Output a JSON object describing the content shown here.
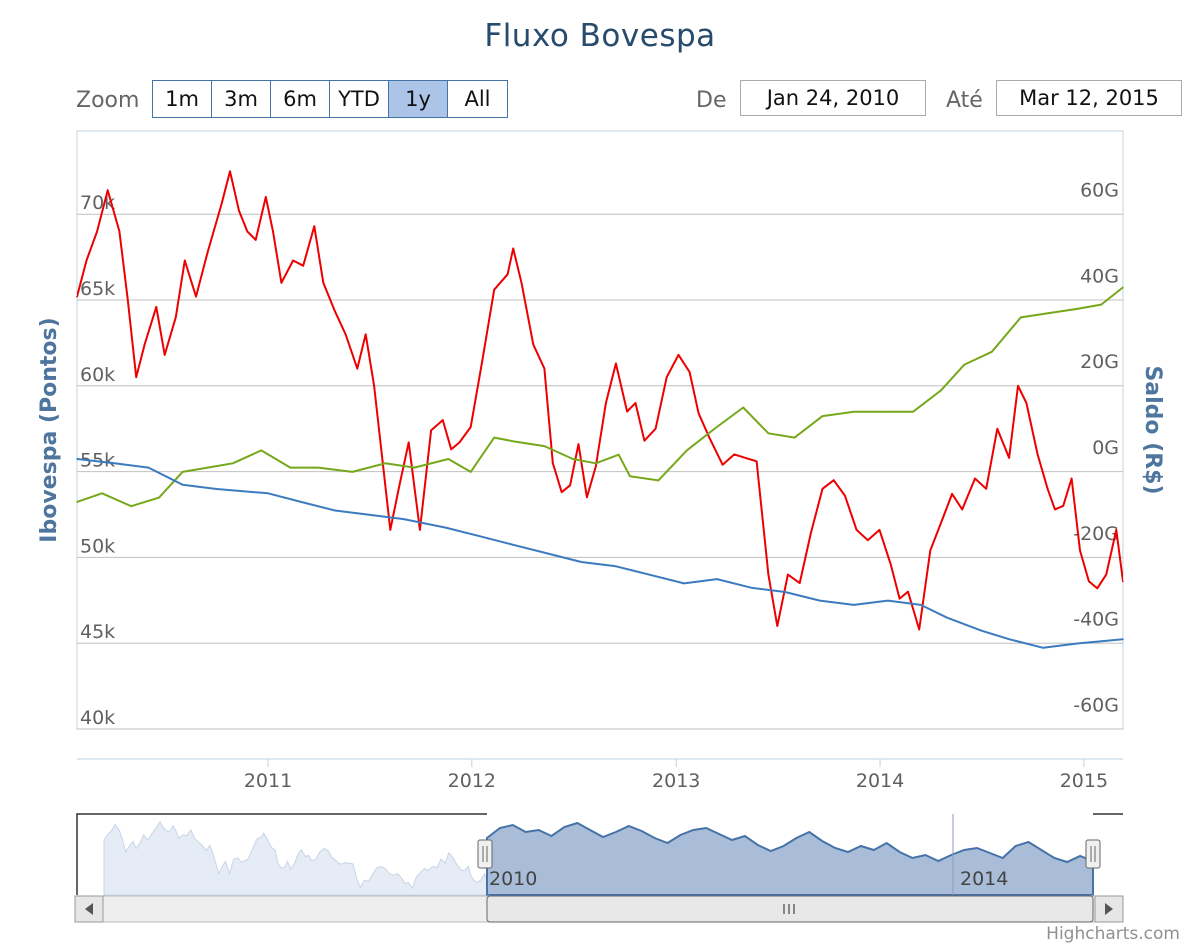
{
  "title": "Fluxo Bovespa",
  "range_selector": {
    "zoom_label": "Zoom",
    "buttons": [
      "1m",
      "3m",
      "6m",
      "YTD",
      "1y",
      "All"
    ],
    "active": "1y",
    "from_label": "De",
    "from_value": "Jan 24, 2010",
    "to_label": "Até",
    "to_value": "Mar 12, 2015"
  },
  "credit": "Highcharts.com",
  "colors": {
    "ibovespa": "#ee0000",
    "saldo_green": "#76a81b",
    "saldo_blue": "#3d7bbf",
    "title": "#274b6d",
    "axis_title": "#4d759e",
    "gridline": "#c0c0c0",
    "navigator_fill": "#a9bcd8",
    "navigator_line": "#4572a7"
  },
  "chart_data": {
    "type": "line",
    "title": "Fluxo Bovespa",
    "x_range": [
      "2010-01-24",
      "2015-03-12"
    ],
    "x_ticks": [
      "2011",
      "2012",
      "2013",
      "2014",
      "2015"
    ],
    "y_left": {
      "label": "Ibovespa (Pontos)",
      "ticks": [
        "40k",
        "45k",
        "50k",
        "55k",
        "60k",
        "65k",
        "70k"
      ],
      "range": [
        40000,
        75000
      ]
    },
    "y_right": {
      "label": "Saldo (R$)",
      "ticks": [
        "-60G",
        "-40G",
        "-20G",
        "0G",
        "20G",
        "40G",
        "60G"
      ],
      "range": [
        -60,
        80
      ]
    },
    "grid": true,
    "series": [
      {
        "axis": "left",
        "color": "#ee0000",
        "points": [
          [
            "2010-01-24",
            65200
          ],
          [
            "2010-02-10",
            67300
          ],
          [
            "2010-03-01",
            69000
          ],
          [
            "2010-03-20",
            71400
          ],
          [
            "2010-04-10",
            69000
          ],
          [
            "2010-04-25",
            65000
          ],
          [
            "2010-05-10",
            60500
          ],
          [
            "2010-05-25",
            62400
          ],
          [
            "2010-06-15",
            64600
          ],
          [
            "2010-06-30",
            61800
          ],
          [
            "2010-07-20",
            64000
          ],
          [
            "2010-08-05",
            67300
          ],
          [
            "2010-08-25",
            65200
          ],
          [
            "2010-09-15",
            67800
          ],
          [
            "2010-10-10",
            70600
          ],
          [
            "2010-10-25",
            72500
          ],
          [
            "2010-11-10",
            70200
          ],
          [
            "2010-11-25",
            69000
          ],
          [
            "2010-12-10",
            68500
          ],
          [
            "2010-12-28",
            71000
          ],
          [
            "2011-01-10",
            69000
          ],
          [
            "2011-01-25",
            66000
          ],
          [
            "2011-02-15",
            67300
          ],
          [
            "2011-03-05",
            67000
          ],
          [
            "2011-03-25",
            69300
          ],
          [
            "2011-04-10",
            66000
          ],
          [
            "2011-04-30",
            64400
          ],
          [
            "2011-05-20",
            63000
          ],
          [
            "2011-06-10",
            61000
          ],
          [
            "2011-06-25",
            63000
          ],
          [
            "2011-07-10",
            60000
          ],
          [
            "2011-08-08",
            51600
          ],
          [
            "2011-08-25",
            54300
          ],
          [
            "2011-09-10",
            56700
          ],
          [
            "2011-09-30",
            51600
          ],
          [
            "2011-10-20",
            57400
          ],
          [
            "2011-11-10",
            58000
          ],
          [
            "2011-11-25",
            56300
          ],
          [
            "2011-12-10",
            56700
          ],
          [
            "2011-12-30",
            57600
          ],
          [
            "2012-01-20",
            61500
          ],
          [
            "2012-02-10",
            65600
          ],
          [
            "2012-03-05",
            66500
          ],
          [
            "2012-03-15",
            68000
          ],
          [
            "2012-03-30",
            66000
          ],
          [
            "2012-04-20",
            62400
          ],
          [
            "2012-05-10",
            61000
          ],
          [
            "2012-05-25",
            55500
          ],
          [
            "2012-06-10",
            53800
          ],
          [
            "2012-06-25",
            54200
          ],
          [
            "2012-07-10",
            56600
          ],
          [
            "2012-07-25",
            53500
          ],
          [
            "2012-08-10",
            55300
          ],
          [
            "2012-08-28",
            59000
          ],
          [
            "2012-09-15",
            61300
          ],
          [
            "2012-10-05",
            58500
          ],
          [
            "2012-10-20",
            59000
          ],
          [
            "2012-11-05",
            56800
          ],
          [
            "2012-11-25",
            57500
          ],
          [
            "2012-12-15",
            60500
          ],
          [
            "2013-01-05",
            61800
          ],
          [
            "2013-01-25",
            60800
          ],
          [
            "2013-02-10",
            58400
          ],
          [
            "2013-03-01",
            57000
          ],
          [
            "2013-03-25",
            55400
          ],
          [
            "2013-04-15",
            56000
          ],
          [
            "2013-05-05",
            55800
          ],
          [
            "2013-05-25",
            55600
          ],
          [
            "2013-06-15",
            49000
          ],
          [
            "2013-07-01",
            46000
          ],
          [
            "2013-07-20",
            49000
          ],
          [
            "2013-08-10",
            48500
          ],
          [
            "2013-08-30",
            51400
          ],
          [
            "2013-09-20",
            54000
          ],
          [
            "2013-10-10",
            54500
          ],
          [
            "2013-10-30",
            53600
          ],
          [
            "2013-11-20",
            51600
          ],
          [
            "2013-12-10",
            51000
          ],
          [
            "2013-12-31",
            51600
          ],
          [
            "2014-01-20",
            49600
          ],
          [
            "2014-02-05",
            47600
          ],
          [
            "2014-02-20",
            48000
          ],
          [
            "2014-03-12",
            45800
          ],
          [
            "2014-04-01",
            50400
          ],
          [
            "2014-04-20",
            52000
          ],
          [
            "2014-05-10",
            53700
          ],
          [
            "2014-05-28",
            52800
          ],
          [
            "2014-06-20",
            54600
          ],
          [
            "2014-07-10",
            54000
          ],
          [
            "2014-07-30",
            57500
          ],
          [
            "2014-08-20",
            55800
          ],
          [
            "2014-09-05",
            60000
          ],
          [
            "2014-09-20",
            59000
          ],
          [
            "2014-10-10",
            56000
          ],
          [
            "2014-10-28",
            54000
          ],
          [
            "2014-11-10",
            52800
          ],
          [
            "2014-11-25",
            53000
          ],
          [
            "2014-12-10",
            54600
          ],
          [
            "2014-12-25",
            50400
          ],
          [
            "2015-01-10",
            48600
          ],
          [
            "2015-01-25",
            48200
          ],
          [
            "2015-02-10",
            49000
          ],
          [
            "2015-02-28",
            51600
          ],
          [
            "2015-03-12",
            48600
          ]
        ]
      },
      {
        "axis": "right",
        "color": "#76a81b",
        "points": [
          [
            "2010-01-24",
            -10
          ],
          [
            "2010-03-10",
            -8
          ],
          [
            "2010-05-01",
            -11
          ],
          [
            "2010-06-20",
            -9
          ],
          [
            "2010-08-01",
            -3
          ],
          [
            "2010-09-15",
            -2
          ],
          [
            "2010-10-30",
            -1
          ],
          [
            "2010-12-20",
            2
          ],
          [
            "2011-02-10",
            -2
          ],
          [
            "2011-04-01",
            -2
          ],
          [
            "2011-06-01",
            -3
          ],
          [
            "2011-07-30",
            -1
          ],
          [
            "2011-09-20",
            -2
          ],
          [
            "2011-11-20",
            0
          ],
          [
            "2011-12-30",
            -3
          ],
          [
            "2012-02-10",
            5
          ],
          [
            "2012-03-20",
            4
          ],
          [
            "2012-05-10",
            3
          ],
          [
            "2012-06-30",
            0
          ],
          [
            "2012-08-10",
            -1
          ],
          [
            "2012-09-20",
            1
          ],
          [
            "2012-10-10",
            -4
          ],
          [
            "2012-11-30",
            -5
          ],
          [
            "2013-01-20",
            2
          ],
          [
            "2013-03-10",
            7
          ],
          [
            "2013-05-01",
            12
          ],
          [
            "2013-06-15",
            6
          ],
          [
            "2013-08-01",
            5
          ],
          [
            "2013-09-20",
            10
          ],
          [
            "2013-11-15",
            11
          ],
          [
            "2014-01-05",
            11
          ],
          [
            "2014-03-01",
            11
          ],
          [
            "2014-04-20",
            16
          ],
          [
            "2014-06-01",
            22
          ],
          [
            "2014-07-20",
            25
          ],
          [
            "2014-09-10",
            33
          ],
          [
            "2014-10-30",
            34
          ],
          [
            "2014-12-20",
            35
          ],
          [
            "2015-02-01",
            36
          ],
          [
            "2015-03-12",
            40
          ]
        ]
      },
      {
        "axis": "right",
        "color": "#3d7bbf",
        "points": [
          [
            "2010-01-24",
            0
          ],
          [
            "2010-04-01",
            -1
          ],
          [
            "2010-06-01",
            -2
          ],
          [
            "2010-08-01",
            -6
          ],
          [
            "2010-10-01",
            -7
          ],
          [
            "2011-01-01",
            -8
          ],
          [
            "2011-03-01",
            -10
          ],
          [
            "2011-05-01",
            -12
          ],
          [
            "2011-07-01",
            -13
          ],
          [
            "2011-09-01",
            -14
          ],
          [
            "2011-11-15",
            -16
          ],
          [
            "2012-01-15",
            -18
          ],
          [
            "2012-03-15",
            -20
          ],
          [
            "2012-05-15",
            -22
          ],
          [
            "2012-07-15",
            -24
          ],
          [
            "2012-09-15",
            -25
          ],
          [
            "2012-11-15",
            -27
          ],
          [
            "2013-01-15",
            -29
          ],
          [
            "2013-03-15",
            -28
          ],
          [
            "2013-05-15",
            -30
          ],
          [
            "2013-07-15",
            -31
          ],
          [
            "2013-09-15",
            -33
          ],
          [
            "2013-11-15",
            -34
          ],
          [
            "2014-01-15",
            -33
          ],
          [
            "2014-03-15",
            -34
          ],
          [
            "2014-05-01",
            -37
          ],
          [
            "2014-07-01",
            -40
          ],
          [
            "2014-08-20",
            -42
          ],
          [
            "2014-10-20",
            -44
          ],
          [
            "2014-12-20",
            -43
          ],
          [
            "2015-03-12",
            -42
          ]
        ]
      }
    ],
    "navigator": {
      "x_labels": [
        "2010",
        "2014"
      ]
    }
  }
}
